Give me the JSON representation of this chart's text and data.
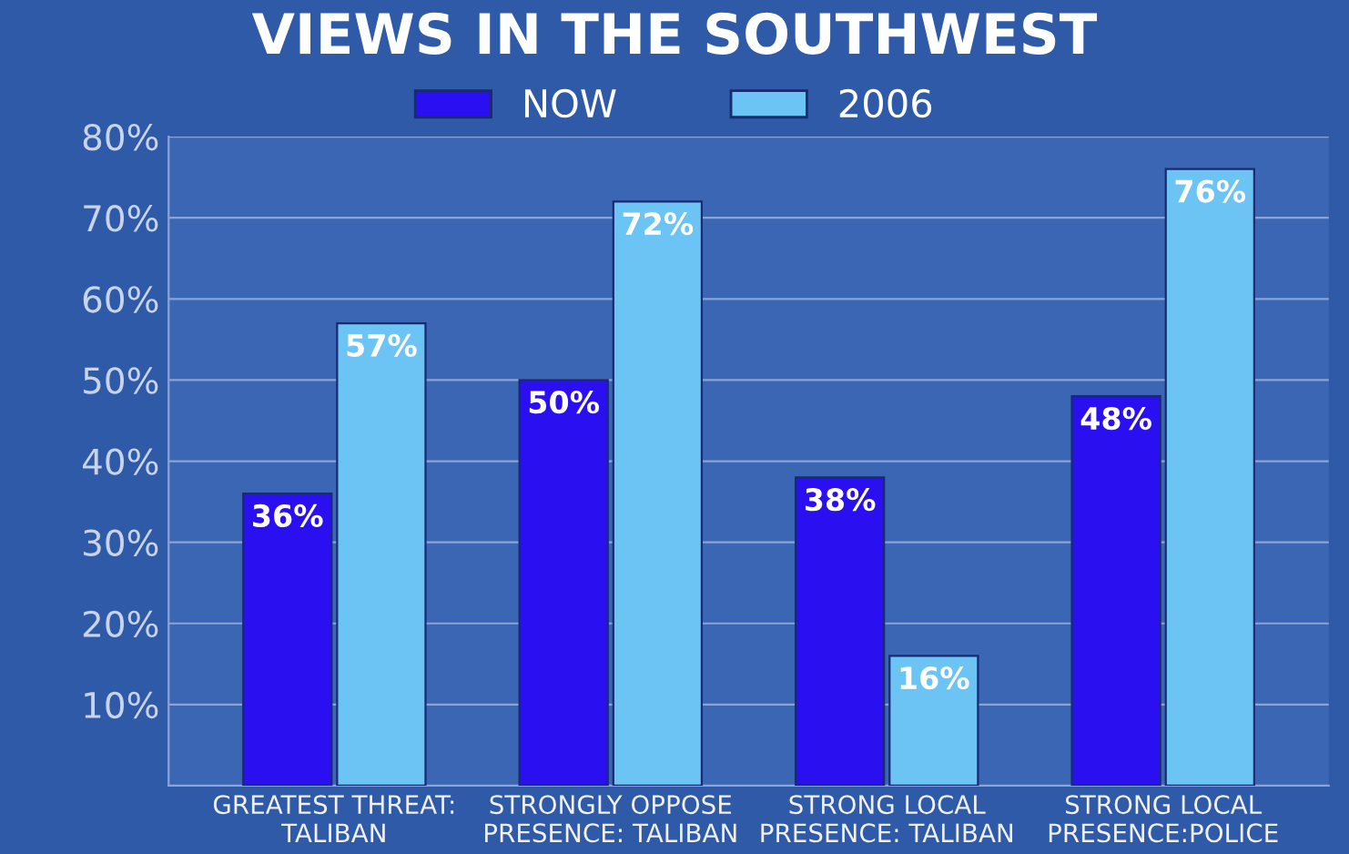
{
  "chart_data": {
    "type": "bar",
    "title": "VIEWS IN THE SOUTHWEST",
    "categories": [
      "GREATEST THREAT:\nTALIBAN",
      "STRONGLY OPPOSE\nPRESENCE: TALIBAN",
      "STRONG LOCAL\nPRESENCE: TALIBAN",
      "STRONG LOCAL\nPRESENCE:POLICE"
    ],
    "series": [
      {
        "name": "NOW",
        "color": "#2a10f0",
        "values": [
          36,
          50,
          38,
          48
        ],
        "value_labels": [
          "36%",
          "50%",
          "38%",
          "48%"
        ]
      },
      {
        "name": "2006",
        "color": "#6cc4f4",
        "values": [
          57,
          72,
          16,
          76
        ],
        "value_labels": [
          "57%",
          "72%",
          "16%",
          "76%"
        ]
      }
    ],
    "ylim": [
      0,
      80
    ],
    "yticks": [
      {
        "value": 10,
        "label": "10%"
      },
      {
        "value": 20,
        "label": "20%"
      },
      {
        "value": 30,
        "label": "30%"
      },
      {
        "value": 40,
        "label": "40%"
      },
      {
        "value": 50,
        "label": "50%"
      },
      {
        "value": 60,
        "label": "60%"
      },
      {
        "value": 70,
        "label": "70%"
      },
      {
        "value": 80,
        "label": "80%"
      }
    ],
    "grid": "y",
    "legend": "top"
  }
}
